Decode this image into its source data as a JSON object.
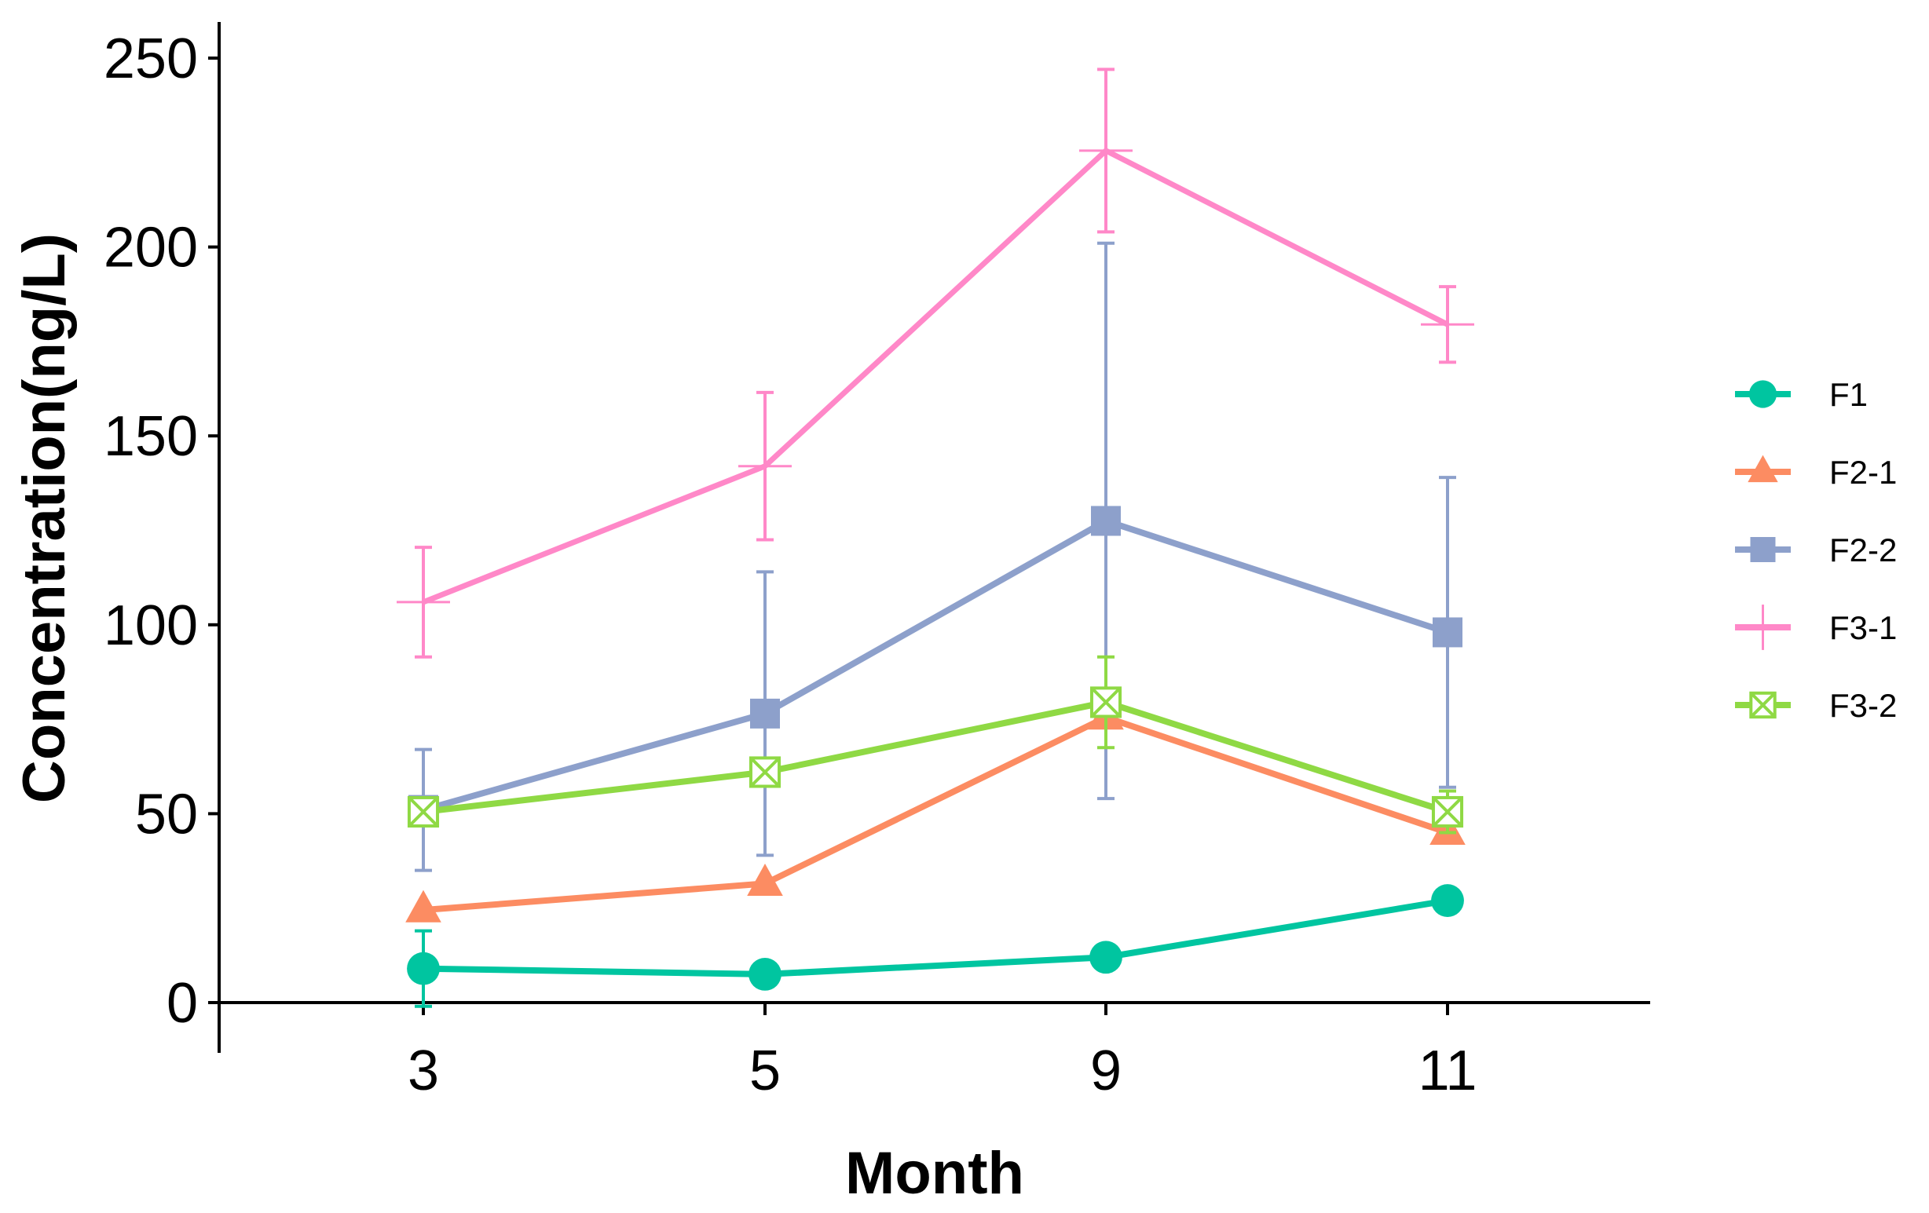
{
  "chart_data": {
    "type": "line",
    "title": "",
    "xlabel": "Month",
    "ylabel": "Concentration(ng/L)",
    "categories": [
      "3",
      "5",
      "9",
      "11"
    ],
    "xlim": [
      2,
      12.5
    ],
    "ylim": [
      -13,
      260
    ],
    "yticks": [
      0,
      50,
      100,
      150,
      200,
      250
    ],
    "grid": false,
    "legend_position": "right",
    "series": [
      {
        "name": "F1",
        "color": "#00C5A0",
        "marker": "circle",
        "values": [
          9,
          7.5,
          12,
          27
        ],
        "errors": [
          10,
          0,
          0,
          0
        ]
      },
      {
        "name": "F2-1",
        "color": "#FC8C62",
        "marker": "triangle",
        "values": [
          24.5,
          31.5,
          75.5,
          45
        ],
        "errors": [
          0,
          0,
          0,
          0
        ]
      },
      {
        "name": "F2-2",
        "color": "#8DA0CB",
        "marker": "square",
        "values": [
          51,
          76.5,
          127.5,
          98
        ],
        "errors": [
          16,
          37.5,
          73.5,
          41
        ]
      },
      {
        "name": "F3-1",
        "color": "#FF88C8",
        "marker": "plus",
        "values": [
          106,
          142,
          225.5,
          179.5
        ],
        "errors": [
          14.5,
          19.5,
          21.5,
          10
        ]
      },
      {
        "name": "F3-2",
        "color": "#8FD944",
        "marker": "boxcross",
        "values": [
          50.5,
          61,
          79.5,
          50.5
        ],
        "errors": [
          0,
          0,
          12,
          5.5
        ]
      }
    ]
  }
}
